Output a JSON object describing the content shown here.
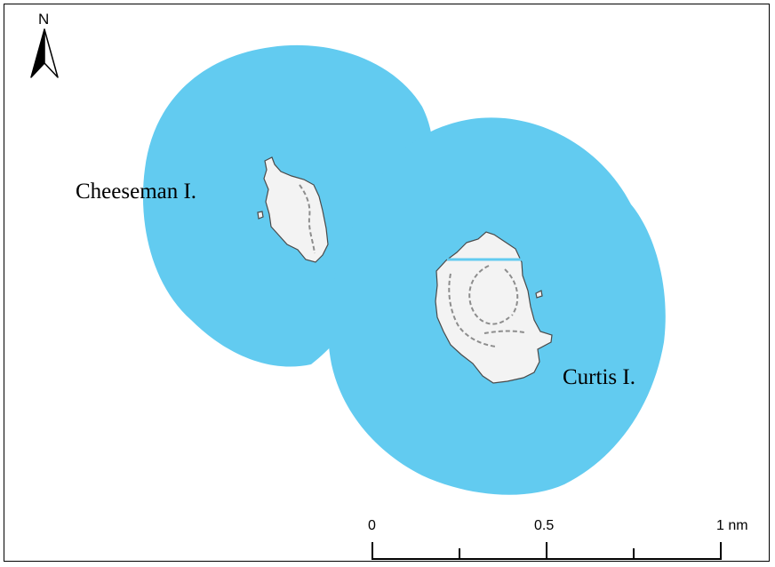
{
  "map": {
    "colors": {
      "buffer": "#62cbf0",
      "land": "#f3f3f3",
      "coast": "#4a4a4a",
      "contour": "#8d8d8d"
    },
    "labels": {
      "cheeseman": "Cheeseman I.",
      "curtis": "Curtis I."
    },
    "north_arrow": {
      "letter": "N"
    },
    "scale_bar": {
      "labels": [
        "0",
        "0.5",
        "1 nm"
      ],
      "divisions": 4
    }
  }
}
